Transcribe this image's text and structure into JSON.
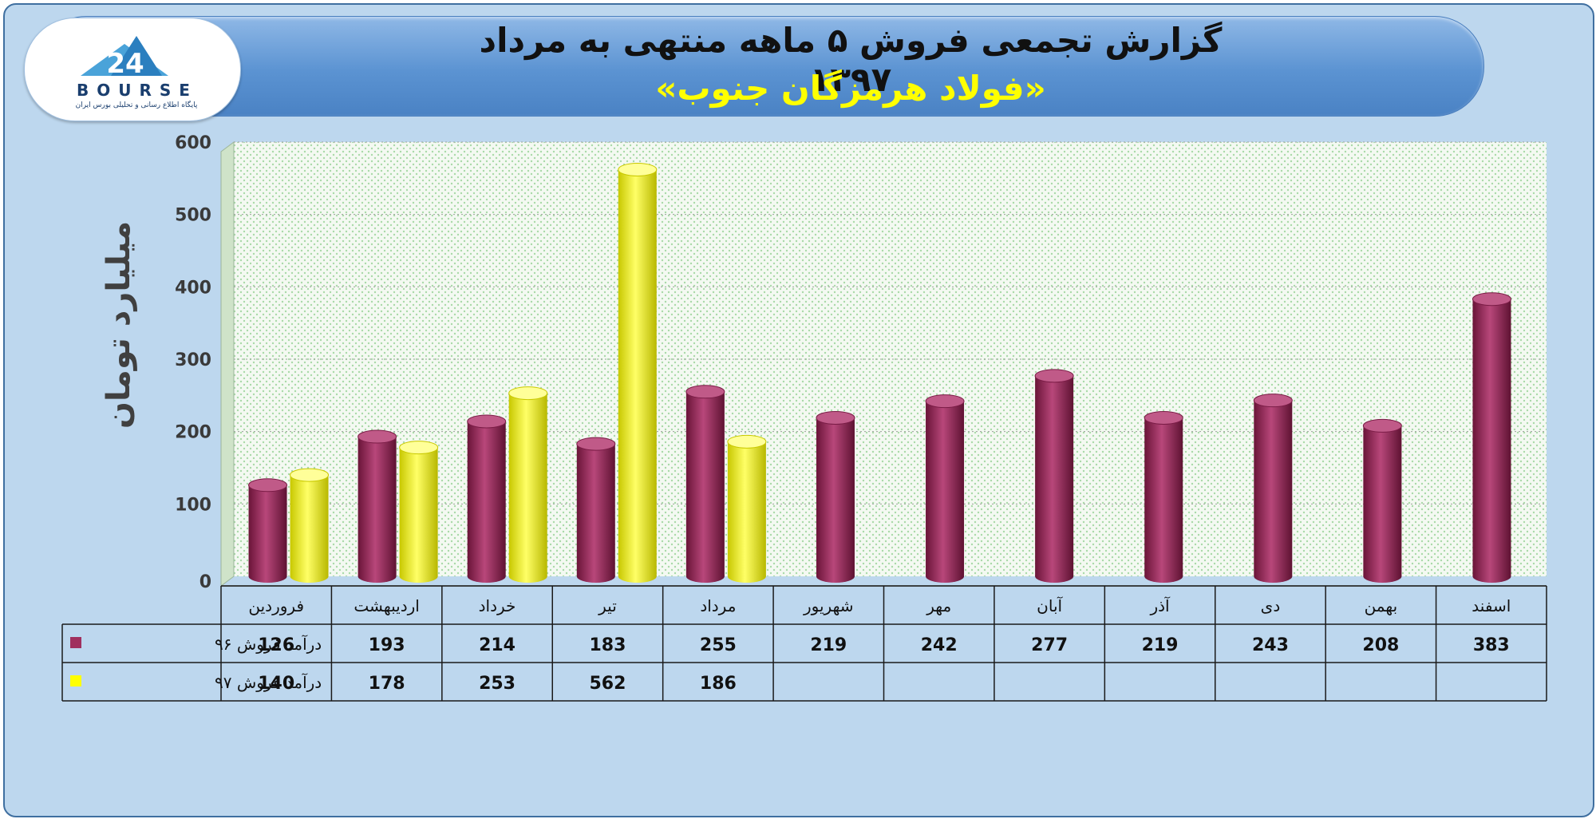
{
  "header": {
    "title": "گزارش تجمعی فروش ۵ ماهه منتهی به مرداد ۱۳۹۷",
    "subtitle": "«فولاد هرمزگان جنوب»"
  },
  "logo": {
    "wordmark": "BOURSE",
    "tagline": "پایگاه اطلاع رسانی و تحلیلی بورس ایران"
  },
  "chart_data": {
    "type": "bar",
    "ylabel": "میلیارد تومان",
    "ylim": [
      0,
      600
    ],
    "yticks": [
      0,
      100,
      200,
      300,
      400,
      500,
      600
    ],
    "grid": true,
    "categories": [
      "فروردین",
      "اردیبهشت",
      "خرداد",
      "تیر",
      "مرداد",
      "شهریور",
      "مهر",
      "آبان",
      "آذر",
      "دی",
      "بهمن",
      "اسفند"
    ],
    "series": [
      {
        "name": "درآمد فروش ۹۶",
        "color": "#a0305e",
        "values": [
          126,
          193,
          214,
          183,
          255,
          219,
          242,
          277,
          219,
          243,
          208,
          383
        ]
      },
      {
        "name": "درآمد فروش ۹۷",
        "color": "#ffff00",
        "values": [
          140,
          178,
          253,
          562,
          186,
          null,
          null,
          null,
          null,
          null,
          null,
          null
        ]
      }
    ]
  },
  "colors": {
    "background": "#bdd7ee",
    "plot_area": "#f2f7ef",
    "banner": "#5b93d2",
    "title_text": "#111111",
    "subtitle_text": "#ffff00"
  }
}
